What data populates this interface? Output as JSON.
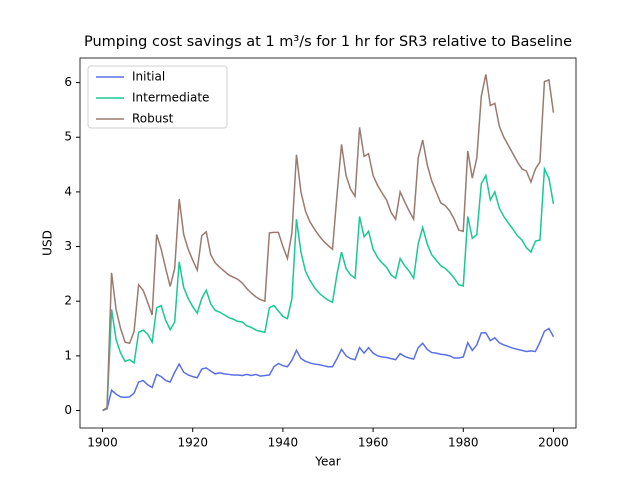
{
  "chart_data": {
    "type": "line",
    "title": "Pumping cost savings at 1 m³/s for 1 hr for SR3 relative to Baseline",
    "xlabel": "Year",
    "ylabel": "USD",
    "x": [
      1900,
      1901,
      1902,
      1903,
      1904,
      1905,
      1906,
      1907,
      1908,
      1909,
      1910,
      1911,
      1912,
      1913,
      1914,
      1915,
      1916,
      1917,
      1918,
      1919,
      1920,
      1921,
      1922,
      1923,
      1924,
      1925,
      1926,
      1927,
      1928,
      1929,
      1930,
      1931,
      1932,
      1933,
      1934,
      1935,
      1936,
      1937,
      1938,
      1939,
      1940,
      1941,
      1942,
      1943,
      1944,
      1945,
      1946,
      1947,
      1948,
      1949,
      1950,
      1951,
      1952,
      1953,
      1954,
      1955,
      1956,
      1957,
      1958,
      1959,
      1960,
      1961,
      1962,
      1963,
      1964,
      1965,
      1966,
      1967,
      1968,
      1969,
      1970,
      1971,
      1972,
      1973,
      1974,
      1975,
      1976,
      1977,
      1978,
      1979,
      1980,
      1981,
      1982,
      1983,
      1984,
      1985,
      1986,
      1987,
      1988,
      1989,
      1990,
      1991,
      1992,
      1993,
      1994,
      1995,
      1996,
      1997,
      1998,
      1999,
      2000
    ],
    "series": [
      {
        "name": "Initial",
        "color": "#5a6fe6",
        "values": [
          0,
          0.03,
          0.37,
          0.3,
          0.25,
          0.24,
          0.25,
          0.32,
          0.52,
          0.55,
          0.47,
          0.42,
          0.66,
          0.62,
          0.55,
          0.52,
          0.7,
          0.85,
          0.7,
          0.65,
          0.62,
          0.6,
          0.76,
          0.78,
          0.72,
          0.67,
          0.69,
          0.67,
          0.66,
          0.65,
          0.65,
          0.64,
          0.66,
          0.64,
          0.66,
          0.63,
          0.64,
          0.65,
          0.8,
          0.86,
          0.82,
          0.8,
          0.92,
          1.1,
          0.95,
          0.9,
          0.87,
          0.85,
          0.84,
          0.82,
          0.8,
          0.8,
          0.95,
          1.12,
          1.0,
          0.95,
          0.93,
          1.15,
          1.05,
          1.15,
          1.05,
          1.0,
          0.98,
          0.97,
          0.95,
          0.93,
          1.04,
          0.99,
          0.96,
          0.94,
          1.15,
          1.23,
          1.12,
          1.06,
          1.05,
          1.03,
          1.02,
          1.0,
          0.96,
          0.96,
          0.98,
          1.24,
          1.1,
          1.2,
          1.42,
          1.42,
          1.28,
          1.33,
          1.24,
          1.2,
          1.17,
          1.14,
          1.12,
          1.1,
          1.08,
          1.09,
          1.08,
          1.25,
          1.45,
          1.5,
          1.35
        ]
      },
      {
        "name": "Intermediate",
        "color": "#18c994",
        "values": [
          0,
          0.05,
          1.85,
          1.3,
          1.05,
          0.9,
          0.93,
          0.87,
          1.43,
          1.47,
          1.4,
          1.25,
          1.88,
          1.92,
          1.65,
          1.48,
          1.62,
          2.72,
          2.25,
          2.05,
          1.9,
          1.78,
          2.05,
          2.2,
          1.95,
          1.83,
          1.8,
          1.75,
          1.7,
          1.67,
          1.63,
          1.62,
          1.55,
          1.52,
          1.47,
          1.45,
          1.43,
          1.88,
          1.92,
          1.82,
          1.72,
          1.68,
          2.05,
          3.5,
          2.9,
          2.55,
          2.38,
          2.25,
          2.15,
          2.08,
          2.02,
          1.98,
          2.5,
          2.9,
          2.6,
          2.48,
          2.42,
          3.55,
          3.18,
          3.28,
          2.95,
          2.8,
          2.7,
          2.62,
          2.48,
          2.42,
          2.78,
          2.65,
          2.55,
          2.42,
          3.05,
          3.35,
          3.05,
          2.85,
          2.75,
          2.65,
          2.6,
          2.52,
          2.42,
          2.3,
          2.28,
          3.55,
          3.15,
          3.22,
          4.15,
          4.3,
          3.85,
          4.0,
          3.7,
          3.55,
          3.43,
          3.32,
          3.2,
          3.12,
          2.98,
          2.9,
          3.1,
          3.12,
          4.42,
          4.25,
          3.78
        ]
      },
      {
        "name": "Robust",
        "color": "#9b7a70",
        "values": [
          0,
          0.05,
          2.52,
          1.85,
          1.5,
          1.25,
          1.23,
          1.45,
          2.3,
          2.2,
          1.98,
          1.75,
          3.22,
          2.95,
          2.6,
          2.27,
          2.6,
          3.87,
          3.22,
          2.95,
          2.75,
          2.57,
          3.2,
          3.27,
          2.85,
          2.7,
          2.62,
          2.55,
          2.48,
          2.44,
          2.4,
          2.33,
          2.23,
          2.15,
          2.08,
          2.03,
          2.0,
          3.25,
          3.26,
          3.26,
          3.0,
          2.78,
          3.25,
          4.68,
          4.0,
          3.65,
          3.45,
          3.32,
          3.2,
          3.1,
          3.02,
          2.95,
          3.95,
          4.87,
          4.3,
          4.05,
          3.92,
          5.18,
          4.65,
          4.7,
          4.3,
          4.12,
          3.98,
          3.85,
          3.62,
          3.5,
          4.0,
          3.82,
          3.65,
          3.5,
          4.62,
          4.95,
          4.5,
          4.2,
          4.0,
          3.8,
          3.75,
          3.65,
          3.5,
          3.3,
          3.28,
          4.75,
          4.25,
          4.62,
          5.75,
          6.15,
          5.58,
          5.62,
          5.2,
          5.0,
          4.85,
          4.7,
          4.55,
          4.42,
          4.38,
          4.18,
          4.42,
          4.55,
          6.02,
          6.05,
          5.45
        ]
      }
    ],
    "xlim": [
      1895,
      2005
    ],
    "ylim": [
      -0.32,
      6.45
    ],
    "xticks": [
      1900,
      1920,
      1940,
      1960,
      1980,
      2000
    ],
    "yticks": [
      0,
      1,
      2,
      3,
      4,
      5,
      6
    ],
    "grid": false,
    "legend": "upper left"
  }
}
